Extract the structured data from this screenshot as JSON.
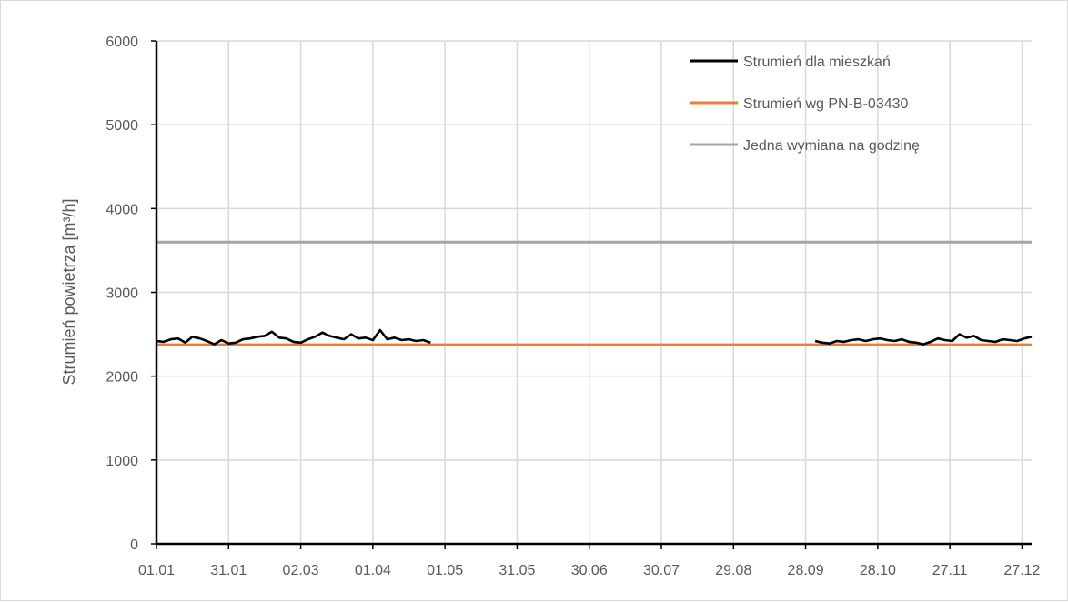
{
  "chart_data": {
    "type": "line",
    "ylabel": "Strumień powietrza [m³/h]",
    "ylim": [
      0,
      6000
    ],
    "yticks": [
      0,
      1000,
      2000,
      3000,
      4000,
      5000,
      6000
    ],
    "xlim": [
      "01.01",
      "31.12"
    ],
    "xticks": [
      "01.01",
      "31.01",
      "02.03",
      "01.04",
      "01.05",
      "31.05",
      "30.06",
      "30.07",
      "29.08",
      "28.09",
      "28.10",
      "27.11",
      "27.12"
    ],
    "grid": true,
    "legend_position": "top-right",
    "series": [
      {
        "name": "Strumień dla mieszkań",
        "color": "#000000",
        "segments": [
          {
            "x": [
              "01.01",
              "04.01",
              "07.01",
              "10.01",
              "13.01",
              "16.01",
              "19.01",
              "22.01",
              "25.01",
              "28.01",
              "31.01",
              "03.02",
              "06.02",
              "09.02",
              "12.02",
              "15.02",
              "18.02",
              "21.02",
              "24.02",
              "27.02",
              "02.03",
              "05.03",
              "08.03",
              "11.03",
              "14.03",
              "17.03",
              "20.03",
              "23.03",
              "26.03",
              "29.03",
              "01.04",
              "04.04",
              "07.04",
              "10.04",
              "13.04",
              "16.04",
              "19.04",
              "22.04",
              "25.04"
            ],
            "y": [
              2420,
              2410,
              2440,
              2450,
              2400,
              2470,
              2450,
              2420,
              2380,
              2430,
              2390,
              2400,
              2440,
              2450,
              2470,
              2480,
              2530,
              2460,
              2450,
              2410,
              2400,
              2440,
              2470,
              2520,
              2480,
              2460,
              2440,
              2500,
              2450,
              2460,
              2430,
              2550,
              2440,
              2460,
              2430,
              2440,
              2420,
              2430,
              2400
            ]
          },
          {
            "x": [
              "02.10",
              "05.10",
              "08.10",
              "11.10",
              "14.10",
              "17.10",
              "20.10",
              "23.10",
              "26.10",
              "29.10",
              "01.11",
              "04.11",
              "07.11",
              "10.11",
              "13.11",
              "16.11",
              "19.11",
              "22.11",
              "25.11",
              "28.11",
              "01.12",
              "04.12",
              "07.12",
              "10.12",
              "13.12",
              "16.12",
              "19.12",
              "22.12",
              "25.12",
              "28.12",
              "31.12"
            ],
            "y": [
              2420,
              2400,
              2390,
              2420,
              2410,
              2430,
              2440,
              2420,
              2440,
              2450,
              2430,
              2420,
              2440,
              2410,
              2400,
              2380,
              2410,
              2450,
              2430,
              2420,
              2500,
              2460,
              2480,
              2430,
              2420,
              2410,
              2440,
              2430,
              2420,
              2450,
              2470
            ]
          }
        ]
      },
      {
        "name": "Strumień wg PN-B-03430",
        "color": "#ed7d31",
        "x": [
          "01.01",
          "31.12"
        ],
        "y": [
          2375,
          2375
        ]
      },
      {
        "name": "Jedna wymiana na godzinę",
        "color": "#a5a5a5",
        "x": [
          "01.01",
          "31.12"
        ],
        "y": [
          3600,
          3600
        ]
      }
    ]
  }
}
